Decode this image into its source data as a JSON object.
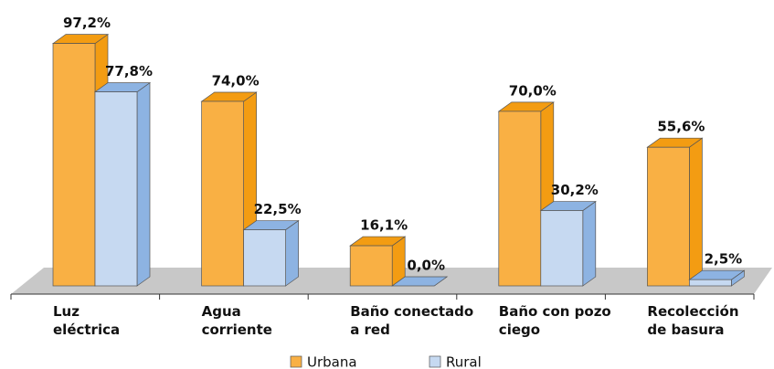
{
  "chart_data": {
    "type": "bar3d",
    "categories": [
      "Luz\neléctrica",
      "Agua\ncorriente",
      "Baño conectado\na red",
      "Baño con pozo\nciego",
      "Recolección\nde basura"
    ],
    "series": [
      {
        "name": "Urbana",
        "color": "#f9b044",
        "side_color": "#f39c12",
        "values": [
          97.2,
          74.0,
          16.1,
          70.0,
          55.6
        ],
        "value_labels": [
          "97,2%",
          "74,0%",
          "16,1%",
          "70,0%",
          "55,6%"
        ]
      },
      {
        "name": "Rural",
        "color": "#c6d9f1",
        "side_color": "#8db3e2",
        "values": [
          77.8,
          22.5,
          0.0,
          30.2,
          2.5
        ],
        "value_labels": [
          "77,8%",
          "22,5%",
          "0,0%",
          "30,2%",
          "2,5%"
        ]
      }
    ],
    "ylim": [
      0,
      100
    ]
  }
}
